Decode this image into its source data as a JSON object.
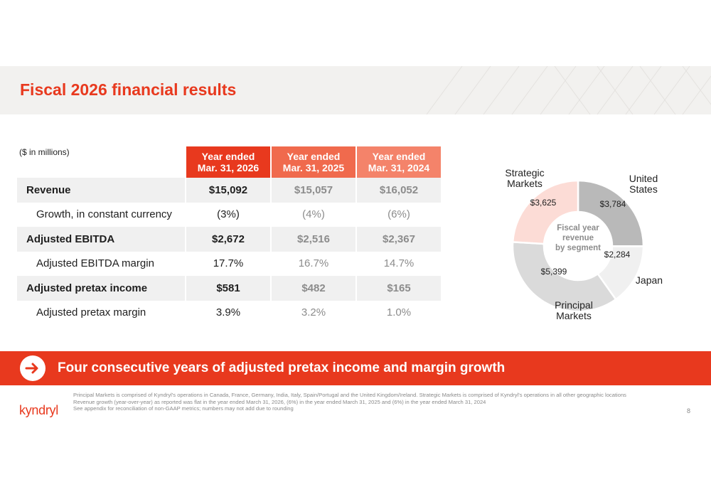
{
  "title": "Fiscal 2026 financial results",
  "units": "($ in millions)",
  "table": {
    "columns": [
      {
        "line1": "Year ended",
        "line2": "Mar. 31, 2026"
      },
      {
        "line1": "Year ended",
        "line2": "Mar. 31, 2025"
      },
      {
        "line1": "Year ended",
        "line2": "Mar. 31, 2024"
      }
    ],
    "rows": [
      {
        "label": "Revenue",
        "values": [
          "$15,092",
          "$15,057",
          "$16,052"
        ]
      },
      {
        "label": "Growth, in constant currency",
        "values": [
          "(3%)",
          "(4%)",
          "(6%)"
        ]
      },
      {
        "label": "Adjusted EBITDA",
        "values": [
          "$2,672",
          "$2,516",
          "$2,367"
        ]
      },
      {
        "label": "Adjusted EBITDA margin",
        "values": [
          "17.7%",
          "16.7%",
          "14.7%"
        ]
      },
      {
        "label": "Adjusted pretax income",
        "values": [
          "$581",
          "$482",
          "$165"
        ]
      },
      {
        "label": "Adjusted pretax margin",
        "values": [
          "3.9%",
          "3.2%",
          "1.0%"
        ]
      }
    ]
  },
  "chart_data": {
    "type": "pie",
    "title": "",
    "center_label": [
      "Fiscal year",
      "revenue",
      "by segment"
    ],
    "slices": [
      {
        "name_lines": [
          "United",
          "States"
        ],
        "label": "$3,784",
        "value": 3784,
        "color": "#b9b9b9"
      },
      {
        "name_lines": [
          "Japan"
        ],
        "label": "$2,284",
        "value": 2284,
        "color": "#f0f0f0"
      },
      {
        "name_lines": [
          "Principal",
          "Markets"
        ],
        "label": "$5,399",
        "value": 5399,
        "color": "#dadada"
      },
      {
        "name_lines": [
          "Strategic",
          "Markets"
        ],
        "label": "$3,625",
        "value": 3625,
        "color": "#fcdcd6"
      }
    ]
  },
  "banner": {
    "text": "Four consecutive years of adjusted pretax income and margin growth"
  },
  "footnotes": [
    "Principal Markets is comprised of Kyndryl's operations in Canada, France, Germany, India, Italy, Spain/Portugal and the United Kingdom/Ireland. Strategic Markets is comprised of Kyndryl's operations in all other geographic locations",
    "Revenue growth (year-over-year) as reported was flat in the year ended March 31, 2026, (6%) in the year ended March 31, 2025 and (6%) in the year ended March 31, 2024",
    "See appendix for reconciliation of non-GAAP metrics; numbers may not add due to rounding"
  ],
  "logo": "kyndryl",
  "page_number": "8",
  "colors": {
    "accent": "#e8391e"
  }
}
